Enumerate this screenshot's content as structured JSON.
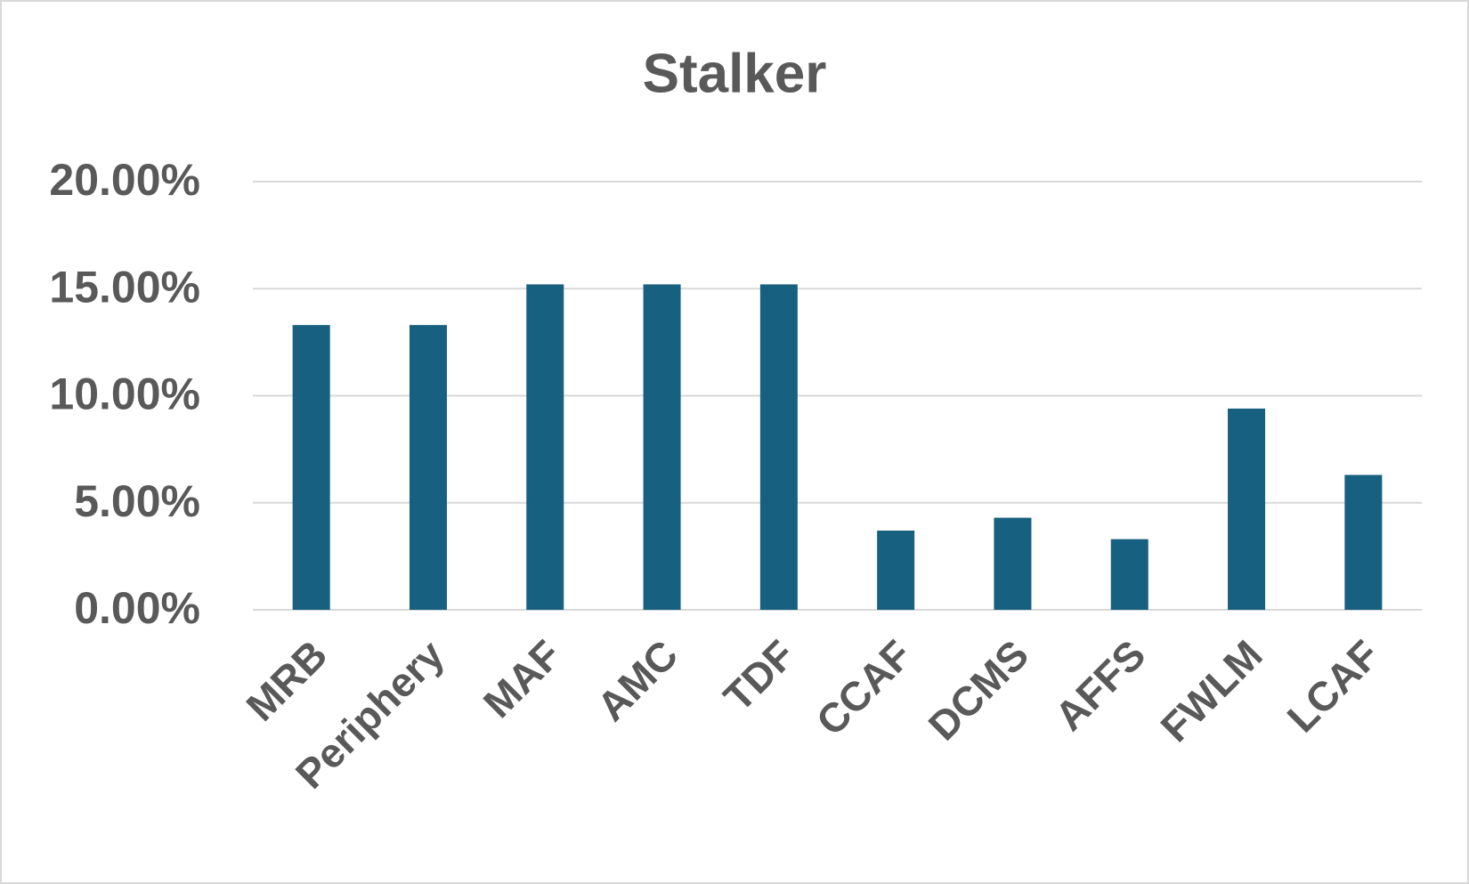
{
  "chart_data": {
    "type": "bar",
    "title": "Stalker",
    "categories": [
      "MRB",
      "Periphery",
      "MAF",
      "AMC",
      "TDF",
      "CCAF",
      "DCMS",
      "AFFS",
      "FWLM",
      "LCAF"
    ],
    "values": [
      13.3,
      13.3,
      15.2,
      15.2,
      15.2,
      3.7,
      4.3,
      3.3,
      9.4,
      6.3
    ],
    "color": "#17607f",
    "ylim": [
      0,
      20
    ],
    "yticks": [
      {
        "value": 0,
        "label": "0.00%"
      },
      {
        "value": 5,
        "label": "5.00%"
      },
      {
        "value": 10,
        "label": "10.00%"
      },
      {
        "value": 15,
        "label": "15.00%"
      },
      {
        "value": 20,
        "label": "20.00%"
      }
    ],
    "grid": true
  }
}
